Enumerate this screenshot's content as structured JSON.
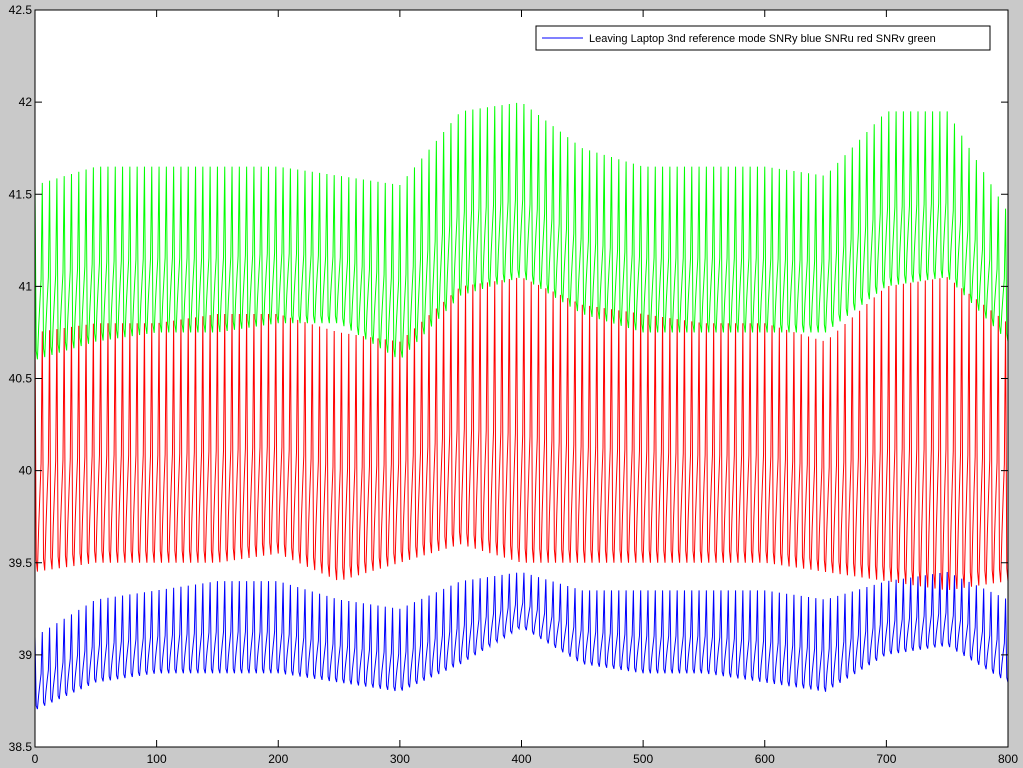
{
  "colors": {
    "figure_background": "#c9c9c9",
    "axes_background": "#ffffff"
  },
  "chart_data": {
    "type": "line",
    "title": "",
    "xlabel": "",
    "ylabel": "",
    "xlim": [
      0,
      800
    ],
    "ylim": [
      38.5,
      42.5
    ],
    "xticks": [
      0,
      100,
      200,
      300,
      400,
      500,
      600,
      700,
      800
    ],
    "yticks": [
      38.5,
      39,
      39.5,
      40,
      40.5,
      41,
      41.5,
      42,
      42.5
    ],
    "xtick_labels": [
      "0",
      "100",
      "200",
      "300",
      "400",
      "500",
      "600",
      "700",
      "800"
    ],
    "ytick_labels": [
      "38.5",
      "39",
      "39.5",
      "40",
      "40.5",
      "41",
      "41.5",
      "42",
      "42.5"
    ],
    "grid": false,
    "legend": {
      "location": "top-right",
      "entries": [
        "Leaving Laptop 3nd reference mode SNRy blue SNRu red SNRv green"
      ]
    },
    "period": 6,
    "sample_count": 800,
    "series": [
      {
        "color": "#ff0000",
        "x": [
          0,
          50,
          100,
          150,
          200,
          250,
          300,
          350,
          400,
          450,
          500,
          550,
          600,
          650,
          700,
          750,
          800
        ],
        "baseline": [
          39.45,
          39.5,
          39.5,
          39.5,
          39.55,
          39.4,
          39.5,
          39.6,
          39.5,
          39.5,
          39.5,
          39.5,
          39.5,
          39.45,
          39.4,
          39.35,
          39.4
        ],
        "spike": [
          40.75,
          40.8,
          40.8,
          40.85,
          40.85,
          40.75,
          40.7,
          41.0,
          41.05,
          40.9,
          40.85,
          40.8,
          40.8,
          40.7,
          41.0,
          41.05,
          40.8
        ]
      },
      {
        "color": "#00ff00",
        "x": [
          0,
          50,
          100,
          150,
          200,
          250,
          300,
          350,
          400,
          450,
          500,
          550,
          600,
          650,
          700,
          750,
          800
        ],
        "baseline": [
          40.6,
          40.7,
          40.75,
          40.75,
          40.8,
          40.8,
          40.6,
          40.95,
          41.05,
          40.85,
          40.75,
          40.75,
          40.75,
          40.75,
          41.0,
          41.05,
          40.7
        ],
        "spike": [
          41.55,
          41.65,
          41.65,
          41.65,
          41.65,
          41.6,
          41.55,
          41.95,
          42.0,
          41.75,
          41.65,
          41.65,
          41.65,
          41.6,
          41.95,
          41.95,
          41.4
        ]
      },
      {
        "color": "#0000ff",
        "x": [
          0,
          50,
          100,
          150,
          200,
          250,
          300,
          350,
          400,
          450,
          500,
          550,
          600,
          650,
          700,
          750,
          800
        ],
        "baseline": [
          38.7,
          38.85,
          38.9,
          38.9,
          38.9,
          38.85,
          38.8,
          38.95,
          39.15,
          38.95,
          38.9,
          38.9,
          38.85,
          38.8,
          39.0,
          39.05,
          38.85
        ],
        "spike": [
          39.1,
          39.3,
          39.35,
          39.4,
          39.4,
          39.3,
          39.25,
          39.4,
          39.45,
          39.35,
          39.35,
          39.35,
          39.35,
          39.3,
          39.4,
          39.45,
          39.3
        ]
      }
    ]
  }
}
